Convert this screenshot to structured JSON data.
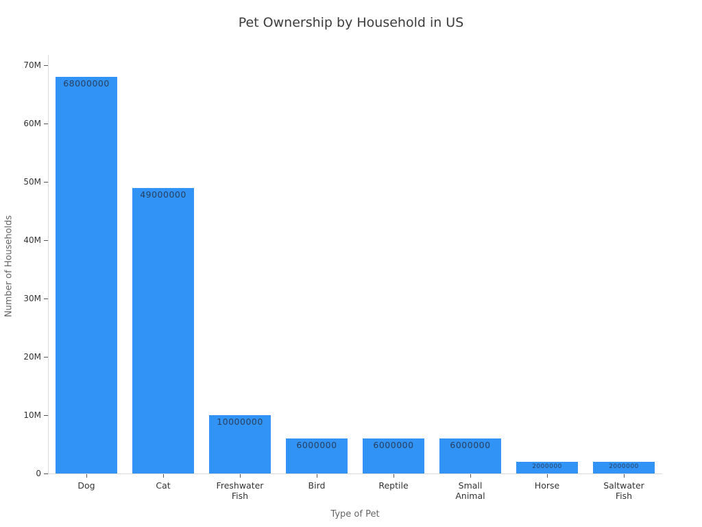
{
  "chart_data": {
    "type": "bar",
    "title": "Pet Ownership by Household in US",
    "xlabel": "Type of Pet",
    "ylabel": "Number of Households",
    "categories": [
      "Dog",
      "Cat",
      "Freshwater\nFish",
      "Bird",
      "Reptile",
      "Small\nAnimal",
      "Horse",
      "Saltwater\nFish"
    ],
    "values": [
      68000000,
      49000000,
      10000000,
      6000000,
      6000000,
      6000000,
      2000000,
      2000000
    ],
    "bar_labels": [
      "68000000",
      "49000000",
      "10000000",
      "6000000",
      "6000000",
      "6000000",
      "2000000",
      "2000000"
    ],
    "y_tick_values": [
      0,
      10000000,
      20000000,
      30000000,
      40000000,
      50000000,
      60000000,
      70000000
    ],
    "y_tick_labels": [
      "0",
      "10M",
      "20M",
      "30M",
      "40M",
      "50M",
      "60M",
      "70M"
    ],
    "ylim": [
      0,
      71800000
    ],
    "grid": false,
    "legend": "none",
    "colors": {
      "bar": "#3093f5",
      "bar_label": "#2a3f5f",
      "tick_label": "#333333",
      "axis_title": "#666666",
      "title": "#3c3c3c",
      "axis_line": "#dadada",
      "tick_mark": "#555555"
    }
  }
}
